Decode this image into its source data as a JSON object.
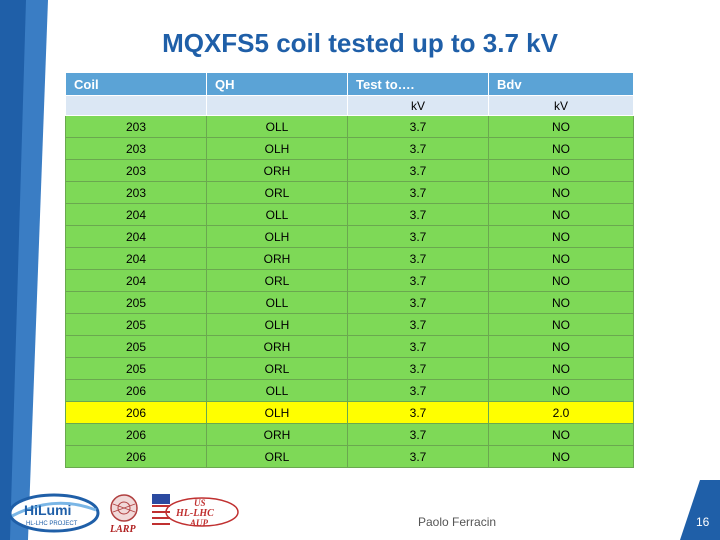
{
  "title": "MQXFS5 coil tested up to 3.7 kV",
  "table": {
    "headers": [
      "Coil",
      "QH",
      "Test to….",
      "Bdv"
    ],
    "units": [
      "",
      "",
      "kV",
      "kV"
    ],
    "rows": [
      {
        "coil": "203",
        "qh": "OLL",
        "test": "3.7",
        "bdv": "NO"
      },
      {
        "coil": "203",
        "qh": "OLH",
        "test": "3.7",
        "bdv": "NO"
      },
      {
        "coil": "203",
        "qh": "ORH",
        "test": "3.7",
        "bdv": "NO"
      },
      {
        "coil": "203",
        "qh": "ORL",
        "test": "3.7",
        "bdv": "NO"
      },
      {
        "coil": "204",
        "qh": "OLL",
        "test": "3.7",
        "bdv": "NO"
      },
      {
        "coil": "204",
        "qh": "OLH",
        "test": "3.7",
        "bdv": "NO"
      },
      {
        "coil": "204",
        "qh": "ORH",
        "test": "3.7",
        "bdv": "NO"
      },
      {
        "coil": "204",
        "qh": "ORL",
        "test": "3.7",
        "bdv": "NO"
      },
      {
        "coil": "205",
        "qh": "OLL",
        "test": "3.7",
        "bdv": "NO"
      },
      {
        "coil": "205",
        "qh": "OLH",
        "test": "3.7",
        "bdv": "NO"
      },
      {
        "coil": "205",
        "qh": "ORH",
        "test": "3.7",
        "bdv": "NO"
      },
      {
        "coil": "205",
        "qh": "ORL",
        "test": "3.7",
        "bdv": "NO"
      },
      {
        "coil": "206",
        "qh": "OLL",
        "test": "3.7",
        "bdv": "NO"
      },
      {
        "coil": "206",
        "qh": "OLH",
        "test": "3.7",
        "bdv": "2.0"
      },
      {
        "coil": "206",
        "qh": "ORH",
        "test": "3.7",
        "bdv": "NO"
      },
      {
        "coil": "206",
        "qh": "ORL",
        "test": "3.7",
        "bdv": "NO"
      }
    ],
    "highlighted_row_index": 13
  },
  "colors": {
    "title": "#1f5fa8",
    "header_bg": "#5ba3d6",
    "subheader_bg": "#dbe7f4",
    "row_bg": "#7ed957",
    "highlight_bg": "#ffff00",
    "accent": "#1f5fa8"
  },
  "footer": {
    "author": "Paolo Ferracin",
    "page_number": "16"
  },
  "logos": {
    "hilumi": {
      "text": "HiLumi",
      "subtext": "HL-LHC PROJECT"
    },
    "larp": {
      "text": "LARP"
    },
    "us_aup": {
      "line1": "US",
      "line2": "HL-LHC",
      "line3": "AUP"
    }
  }
}
